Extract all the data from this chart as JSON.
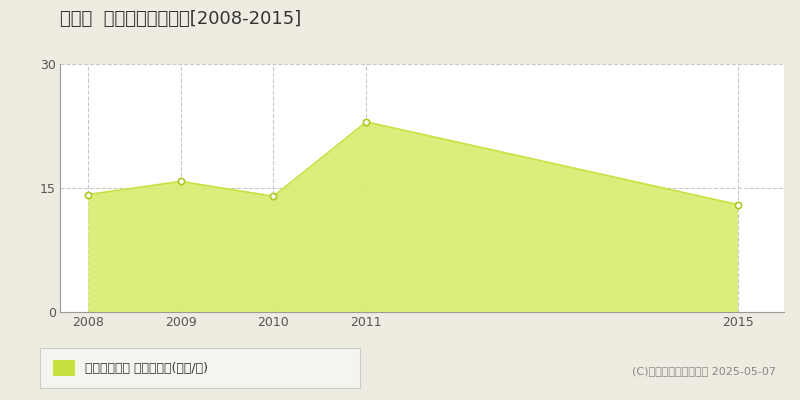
{
  "title": "庄内町  収益物件価格推移[2008-2015]",
  "years": [
    2008,
    2009,
    2010,
    2011,
    2015
  ],
  "values": [
    14.2,
    15.8,
    14.0,
    23.0,
    13.0
  ],
  "ylim": [
    0,
    30
  ],
  "yticks": [
    0,
    15,
    30
  ],
  "xticks": [
    2008,
    2009,
    2010,
    2011,
    2015
  ],
  "line_color": "#c8e040",
  "fill_color": "#d6ed6e",
  "fill_alpha": 0.9,
  "marker_facecolor": "white",
  "marker_edgecolor": "#aac820",
  "grid_color": "#bbbbbb",
  "background_color": "#eeece0",
  "plot_bg_color": "#ffffff",
  "legend_label": "収益物件価格 平均嵪単価(万円/嵪)",
  "legend_marker_color": "#c8e040",
  "copyright_text": "(C)土地価格ドットコム 2025-05-07",
  "title_fontsize": 13,
  "tick_fontsize": 9,
  "legend_fontsize": 9,
  "copyright_fontsize": 8
}
